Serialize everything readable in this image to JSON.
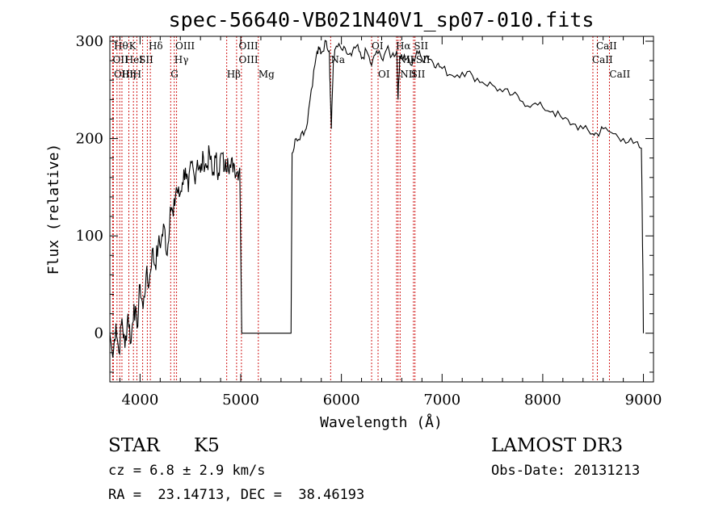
{
  "chart_data": {
    "type": "line",
    "title": "spec-56640-VB021N40V1_sp07-010.fits",
    "xlabel": "Wavelength (Å)",
    "ylabel": "Flux (relative)",
    "xlim": [
      3700,
      9100
    ],
    "ylim": [
      -50,
      305
    ],
    "xticks": [
      4000,
      5000,
      6000,
      7000,
      8000,
      9000
    ],
    "yticks": [
      0,
      100,
      200,
      300
    ],
    "spectrum": {
      "x": [
        3700,
        3730,
        3760,
        3790,
        3820,
        3850,
        3880,
        3910,
        3940,
        3970,
        4000,
        4030,
        4060,
        4090,
        4120,
        4150,
        4180,
        4210,
        4240,
        4270,
        4300,
        4330,
        4360,
        4390,
        4420,
        4450,
        4480,
        4510,
        4540,
        4570,
        4600,
        4630,
        4660,
        4690,
        4720,
        4750,
        4780,
        4810,
        4840,
        4870,
        4900,
        4930,
        4960,
        4990,
        5010,
        5500,
        5510,
        5550,
        5600,
        5650,
        5700,
        5750,
        5780,
        5800,
        5850,
        5880,
        5890,
        5900,
        5920,
        5950,
        6000,
        6050,
        6100,
        6150,
        6200,
        6250,
        6300,
        6350,
        6400,
        6450,
        6500,
        6550,
        6563,
        6580,
        6600,
        6650,
        6700,
        6750,
        6800,
        6850,
        6900,
        6950,
        7000,
        7100,
        7200,
        7300,
        7400,
        7500,
        7600,
        7700,
        7800,
        7900,
        8000,
        8100,
        8200,
        8300,
        8400,
        8500,
        8540,
        8600,
        8700,
        8800,
        8900,
        8980,
        8995,
        9000
      ],
      "y": [
        0,
        -25,
        10,
        -20,
        15,
        -15,
        20,
        -10,
        30,
        5,
        50,
        25,
        60,
        50,
        85,
        70,
        90,
        95,
        110,
        80,
        130,
        120,
        150,
        140,
        155,
        170,
        145,
        175,
        160,
        178,
        165,
        180,
        170,
        185,
        162,
        180,
        165,
        185,
        168,
        180,
        170,
        175,
        165,
        170,
        0,
        0,
        185,
        200,
        205,
        210,
        250,
        285,
        292,
        288,
        300,
        290,
        245,
        210,
        280,
        295,
        292,
        288,
        285,
        295,
        282,
        290,
        275,
        290,
        282,
        292,
        285,
        290,
        240,
        285,
        285,
        282,
        275,
        290,
        282,
        285,
        280,
        276,
        272,
        265,
        268,
        265,
        258,
        255,
        248,
        245,
        238,
        235,
        232,
        228,
        220,
        215,
        210,
        205,
        205,
        210,
        205,
        200,
        195,
        190,
        65,
        0
      ]
    },
    "lines": [
      {
        "w": 3727,
        "label": "OII"
      },
      {
        "w": 3735,
        "label": "OIII"
      },
      {
        "w": 3771,
        "label": "Hθ"
      },
      {
        "w": 3798,
        "label": "Hη"
      },
      {
        "w": 3820,
        "label": "HeI"
      },
      {
        "w": 3889,
        "label": "Hη"
      },
      {
        "w": 3934,
        "label": "K"
      },
      {
        "w": 3968,
        "label": "H"
      },
      {
        "w": 4026,
        "label": "HeI"
      },
      {
        "w": 4072,
        "label": "SII"
      },
      {
        "w": 4102,
        "label": "Hδ"
      },
      {
        "w": 4304,
        "label": "G"
      },
      {
        "w": 4340,
        "label": "Hγ"
      },
      {
        "w": 4363,
        "label": "OIII"
      },
      {
        "w": 4861,
        "label": "Hβ"
      },
      {
        "w": 4959,
        "label": "OIII"
      },
      {
        "w": 5007,
        "label": "OIII"
      },
      {
        "w": 5175,
        "label": "Mg"
      },
      {
        "w": 5893,
        "label": "Na"
      },
      {
        "w": 6300,
        "label": "OI"
      },
      {
        "w": 6364,
        "label": "OI"
      },
      {
        "w": 6548,
        "label": "NII"
      },
      {
        "w": 6563,
        "label": "Hα"
      },
      {
        "w": 6583,
        "label": "NII"
      },
      {
        "w": 6716,
        "label": "SII"
      },
      {
        "w": 6731,
        "label": "SII"
      },
      {
        "w": 8498,
        "label": "CaII"
      },
      {
        "w": 8542,
        "label": "CaII"
      },
      {
        "w": 8662,
        "label": "CaII"
      }
    ],
    "line_labels": [
      {
        "w": 3740,
        "row": 1,
        "label": "Hθ"
      },
      {
        "w": 3890,
        "row": 1,
        "label": "K"
      },
      {
        "w": 4085,
        "row": 1,
        "label": "Hδ"
      },
      {
        "w": 4350,
        "row": 1,
        "label": "OIII"
      },
      {
        "w": 4980,
        "row": 1,
        "label": "OIII"
      },
      {
        "w": 6300,
        "row": 1,
        "label": "OI"
      },
      {
        "w": 6540,
        "row": 1,
        "label": "Hα"
      },
      {
        "w": 6720,
        "row": 1,
        "label": "SII"
      },
      {
        "w": 8530,
        "row": 1,
        "label": "CaII"
      },
      {
        "w": 3728,
        "row": 2,
        "label": "OII"
      },
      {
        "w": 3850,
        "row": 2,
        "label": "HeI"
      },
      {
        "w": 3990,
        "row": 2,
        "label": "SII"
      },
      {
        "w": 4340,
        "row": 2,
        "label": "Hγ"
      },
      {
        "w": 4980,
        "row": 2,
        "label": "OIII"
      },
      {
        "w": 5893,
        "row": 2,
        "label": "Na"
      },
      {
        "w": 6560,
        "row": 2,
        "label": "NII"
      },
      {
        "w": 6740,
        "row": 2,
        "label": "SII"
      },
      {
        "w": 8490,
        "row": 2,
        "label": "CaII"
      },
      {
        "w": 3740,
        "row": 3,
        "label": "OIII"
      },
      {
        "w": 3815,
        "row": 3,
        "label": "Hη"
      },
      {
        "w": 3930,
        "row": 3,
        "label": "H"
      },
      {
        "w": 4304,
        "row": 3,
        "label": "G"
      },
      {
        "w": 4861,
        "row": 3,
        "label": "Hβ"
      },
      {
        "w": 5175,
        "row": 3,
        "label": "Mg"
      },
      {
        "w": 6364,
        "row": 3,
        "label": "OI"
      },
      {
        "w": 6583,
        "row": 3,
        "label": "NII"
      },
      {
        "w": 6690,
        "row": 3,
        "label": "SII"
      },
      {
        "w": 8662,
        "row": 3,
        "label": "CaII"
      }
    ]
  },
  "info": {
    "class": "STAR",
    "subclass": "K5",
    "survey": "LAMOST DR3",
    "cz": "cz = 6.8 ± 2.9 km/s",
    "obs_date": "Obs-Date: 20131213",
    "radec": "RA =  23.14713, DEC =  38.46193"
  }
}
